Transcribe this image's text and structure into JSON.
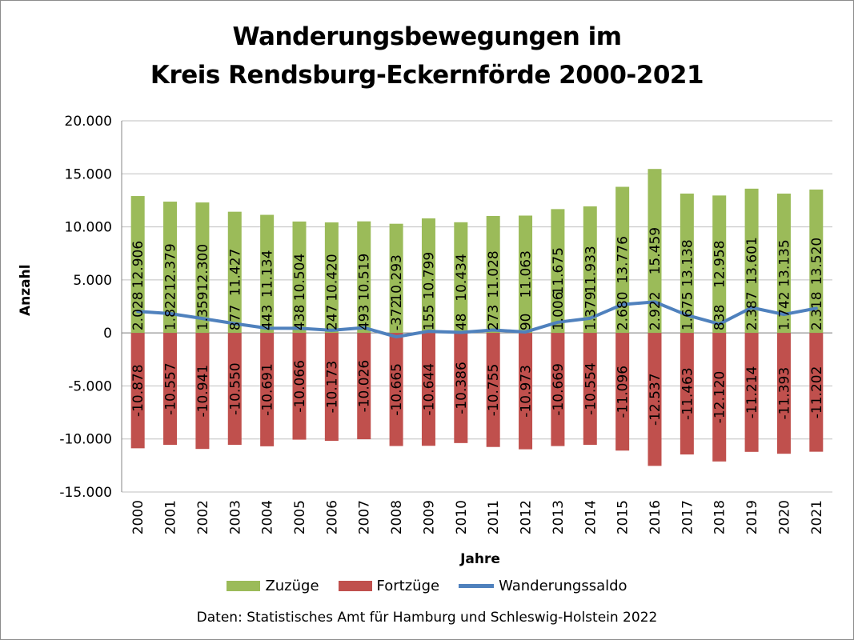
{
  "title_line1": "Wanderungsbewegungen im",
  "title_line2": "Kreis Rendsburg-Eckernförde 2000-2021",
  "source": "Daten: Statistisches Amt für Hamburg und Schleswig-Holstein 2022",
  "chart_data": {
    "type": "bar",
    "stacked": true,
    "title": "Wanderungsbewegungen im Kreis Rendsburg-Eckernförde 2000-2021",
    "xlabel": "Jahre",
    "ylabel": "Anzahl",
    "ylim": [
      -15000,
      20000
    ],
    "yticks": [
      -15000,
      -10000,
      -5000,
      0,
      5000,
      10000,
      15000,
      20000
    ],
    "ytick_labels": [
      "-15.000",
      "-10.000",
      "-5.000",
      "0",
      "5.000",
      "10.000",
      "15.000",
      "20.000"
    ],
    "grid": true,
    "legend_position": "bottom",
    "categories": [
      "2000",
      "2001",
      "2002",
      "2003",
      "2004",
      "2005",
      "2006",
      "2007",
      "2008",
      "2009",
      "2010",
      "2011",
      "2012",
      "2013",
      "2014",
      "2015",
      "2016",
      "2017",
      "2018",
      "2019",
      "2020",
      "2021"
    ],
    "series": [
      {
        "name": "Zuzüge",
        "type": "bar",
        "color": "#9bbb59",
        "values": [
          12906,
          12379,
          12300,
          11427,
          11134,
          10504,
          10420,
          10519,
          10293,
          10799,
          10434,
          11028,
          11063,
          11675,
          11933,
          13776,
          15459,
          13138,
          12958,
          13601,
          13135,
          13520
        ],
        "labels": [
          "12.906",
          "12.379",
          "12.300",
          "11.427",
          "11.134",
          "10.504",
          "10.420",
          "10.519",
          "10.293",
          "10.799",
          "10.434",
          "11.028",
          "11.063",
          "11.675",
          "11.933",
          "13.776",
          "15.459",
          "13.138",
          "12.958",
          "13.601",
          "13.135",
          "13.520"
        ]
      },
      {
        "name": "Fortzüge",
        "type": "bar",
        "color": "#c0504d",
        "values": [
          -10878,
          -10557,
          -10941,
          -10550,
          -10691,
          -10066,
          -10173,
          -10026,
          -10665,
          -10644,
          -10386,
          -10755,
          -10973,
          -10669,
          -10554,
          -11096,
          -12537,
          -11463,
          -12120,
          -11214,
          -11393,
          -11202
        ],
        "labels": [
          "-10.878",
          "-10.557",
          "-10.941",
          "-10.550",
          "-10.691",
          "-10.066",
          "-10.173",
          "-10.026",
          "-10.665",
          "-10.644",
          "-10.386",
          "-10.755",
          "-10.973",
          "-10.669",
          "-10.554",
          "-11.096",
          "-12.537",
          "-11.463",
          "-12.120",
          "-11.214",
          "-11.393",
          "-11.202"
        ]
      },
      {
        "name": "Wanderungssaldo",
        "type": "line",
        "color": "#4f81bd",
        "values": [
          2028,
          1822,
          1359,
          877,
          443,
          438,
          247,
          493,
          -372,
          155,
          48,
          273,
          90,
          1006,
          1379,
          2680,
          2922,
          1675,
          838,
          2387,
          1742,
          2318
        ],
        "labels": [
          "2.028",
          "1.822",
          "1.359",
          "877",
          "443",
          "438",
          "247",
          "493",
          "-372",
          "155",
          "48",
          "273",
          "90",
          "1.006",
          "1.379",
          "2.680",
          "2.922",
          "1.675",
          "838",
          "2.387",
          "1.742",
          "2.318"
        ]
      }
    ]
  }
}
